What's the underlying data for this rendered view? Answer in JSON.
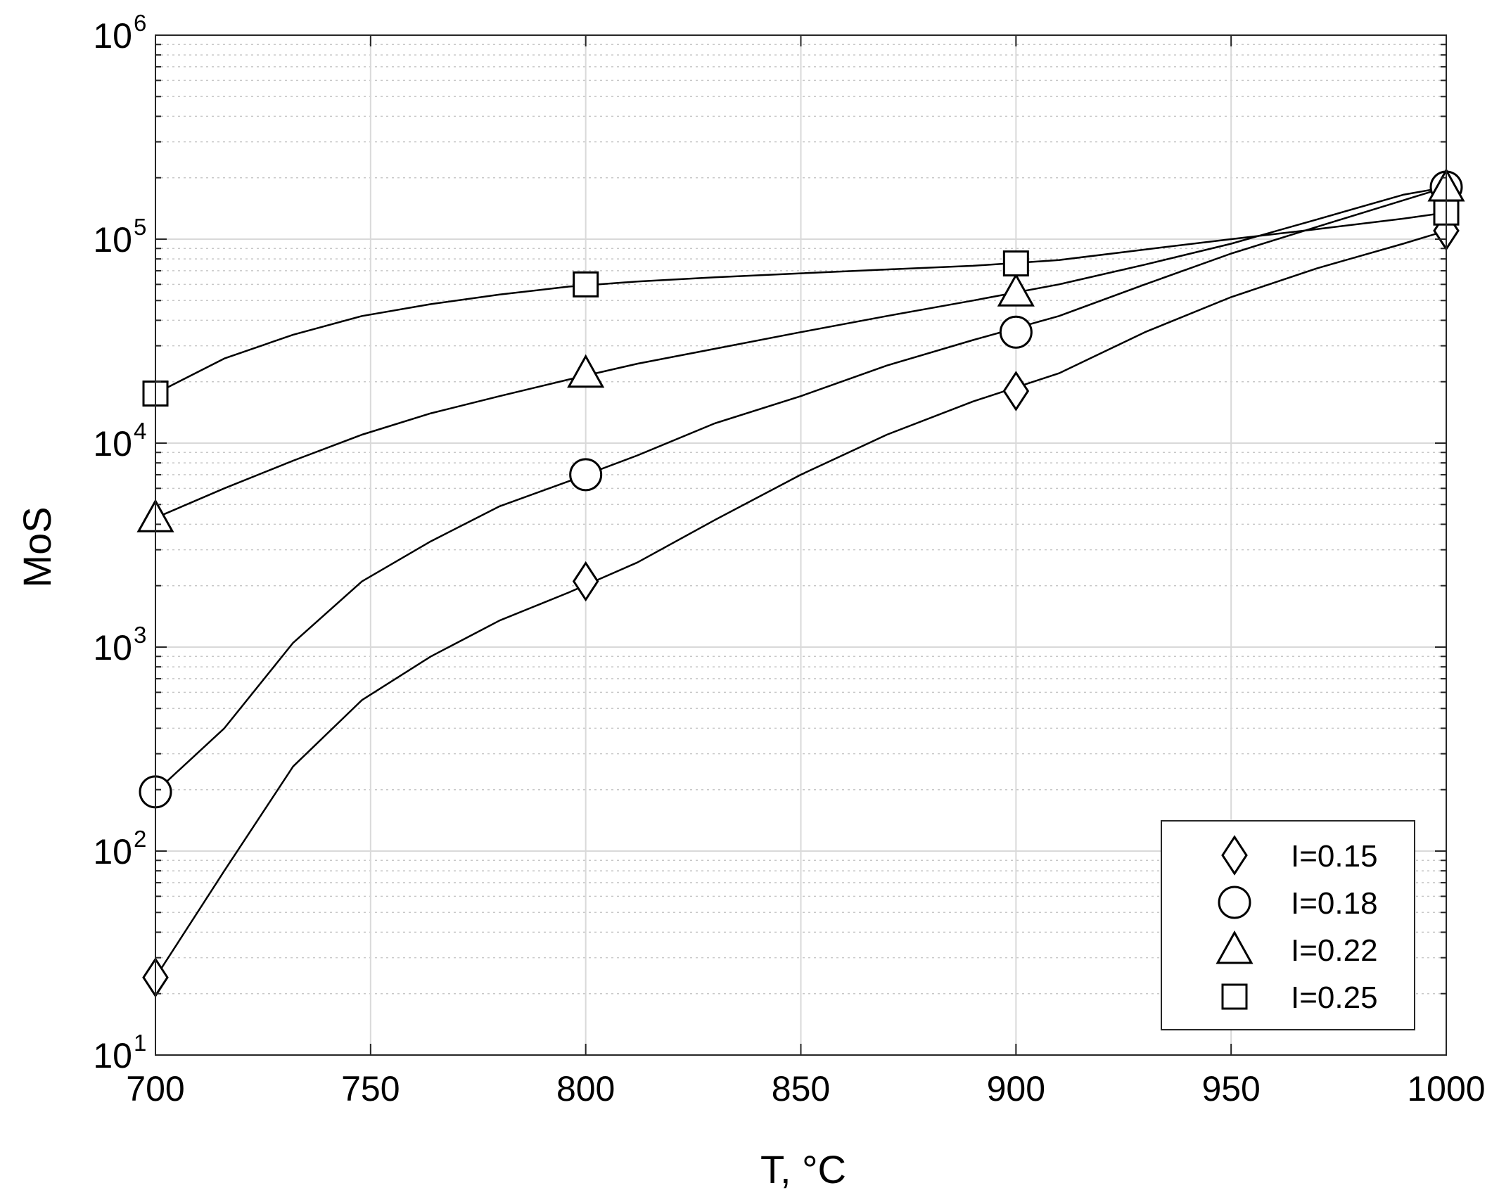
{
  "chart_data": {
    "type": "line",
    "xlabel": "T, °C",
    "ylabel": "MoS",
    "xlim": [
      700,
      1000
    ],
    "ylim": [
      10,
      1000000
    ],
    "yscale": "log",
    "grid": true,
    "minor_grid": true,
    "legend_position": "bottom-right",
    "x_ticks": [
      700,
      750,
      800,
      850,
      900,
      950,
      1000
    ],
    "y_ticks": [
      {
        "base": "10",
        "exp": "1"
      },
      {
        "base": "10",
        "exp": "2"
      },
      {
        "base": "10",
        "exp": "3"
      },
      {
        "base": "10",
        "exp": "4"
      },
      {
        "base": "10",
        "exp": "5"
      },
      {
        "base": "10",
        "exp": "6"
      }
    ],
    "series": [
      {
        "name": "I=0.15",
        "marker": "diamond",
        "x": [
          700,
          800,
          900,
          1000
        ],
        "y": [
          24,
          2100,
          18000,
          110000
        ],
        "curve": {
          "x": [
            700,
            716,
            732,
            748,
            764,
            780,
            796,
            812,
            830,
            850,
            870,
            890,
            910,
            930,
            950,
            970,
            990,
            1000
          ],
          "y": [
            24,
            80,
            260,
            550,
            900,
            1350,
            1850,
            2600,
            4200,
            7000,
            11000,
            16000,
            22000,
            35000,
            52000,
            72000,
            95000,
            110000
          ]
        }
      },
      {
        "name": "I=0.18",
        "marker": "circle",
        "x": [
          700,
          800,
          900,
          1000
        ],
        "y": [
          195,
          7000,
          35000,
          180000
        ],
        "curve": {
          "x": [
            700,
            716,
            732,
            748,
            764,
            780,
            796,
            812,
            830,
            850,
            870,
            890,
            910,
            930,
            950,
            970,
            990,
            1000
          ],
          "y": [
            195,
            400,
            1050,
            2100,
            3300,
            4900,
            6500,
            8700,
            12500,
            17000,
            24000,
            32000,
            42000,
            60000,
            85000,
            115000,
            155000,
            180000
          ]
        }
      },
      {
        "name": "I=0.22",
        "marker": "triangle",
        "x": [
          700,
          800,
          900,
          1000
        ],
        "y": [
          4300,
          22000,
          55000,
          180000
        ],
        "curve": {
          "x": [
            700,
            716,
            732,
            748,
            764,
            780,
            796,
            812,
            830,
            850,
            870,
            890,
            910,
            930,
            950,
            970,
            990,
            1000
          ],
          "y": [
            4300,
            6000,
            8200,
            11000,
            14000,
            17000,
            20500,
            24500,
            29000,
            35000,
            42000,
            50000,
            60000,
            75000,
            95000,
            125000,
            165000,
            180000
          ]
        }
      },
      {
        "name": "I=0.25",
        "marker": "square",
        "x": [
          700,
          800,
          900,
          1000
        ],
        "y": [
          17500,
          60000,
          76000,
          135000
        ],
        "curve": {
          "x": [
            700,
            716,
            732,
            748,
            764,
            780,
            796,
            812,
            830,
            850,
            870,
            890,
            910,
            930,
            950,
            970,
            990,
            1000
          ],
          "y": [
            17500,
            26000,
            34000,
            42000,
            48000,
            53500,
            58500,
            62000,
            65000,
            68000,
            71000,
            74000,
            79000,
            89000,
            100000,
            112000,
            126000,
            135000
          ]
        }
      }
    ]
  }
}
